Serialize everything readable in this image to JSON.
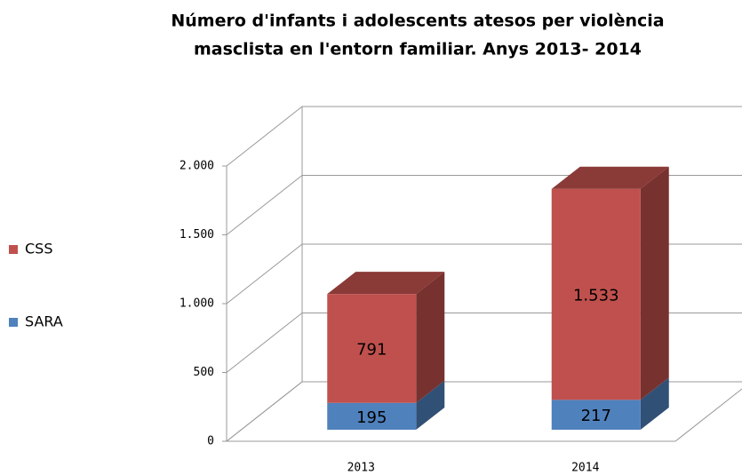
{
  "chart_data": {
    "type": "bar3d_stacked",
    "title": "Número d'infants i adolescents atesos per violència masclista en l'entorn familiar. Anys 2013- 2014",
    "categories": [
      "2013",
      "2014"
    ],
    "series": [
      {
        "name": "SARA",
        "color": "#4f81bd",
        "values": [
          195,
          217
        ]
      },
      {
        "name": "CSS",
        "color": "#c0504d",
        "values": [
          791,
          1533
        ],
        "value_labels": [
          "791",
          "1.533"
        ]
      }
    ],
    "ylim": [
      0,
      2000
    ],
    "yticks": [
      0,
      500,
      {
        "value": 1000,
        "label": "1.000"
      },
      {
        "value": 1500,
        "label": "1.500"
      },
      {
        "value": 2000,
        "label": "2.000"
      }
    ],
    "grid": true,
    "legend": "left"
  }
}
